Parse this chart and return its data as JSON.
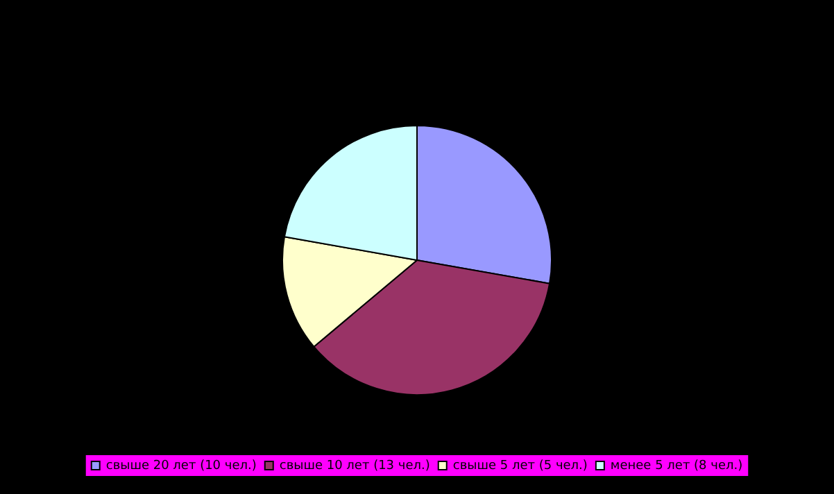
{
  "chart_data": {
    "type": "pie",
    "categories": [
      "свыше 20 лет (10 чел.)",
      "свыше 10 лет (13 чел.)",
      "свыше 5 лет (5 чел.)",
      "менее 5 лет (8 чел.)"
    ],
    "values": [
      10,
      13,
      5,
      8
    ],
    "colors": [
      "#9999ff",
      "#993366",
      "#ffffcc",
      "#ccffff"
    ],
    "legend": "bottom"
  }
}
